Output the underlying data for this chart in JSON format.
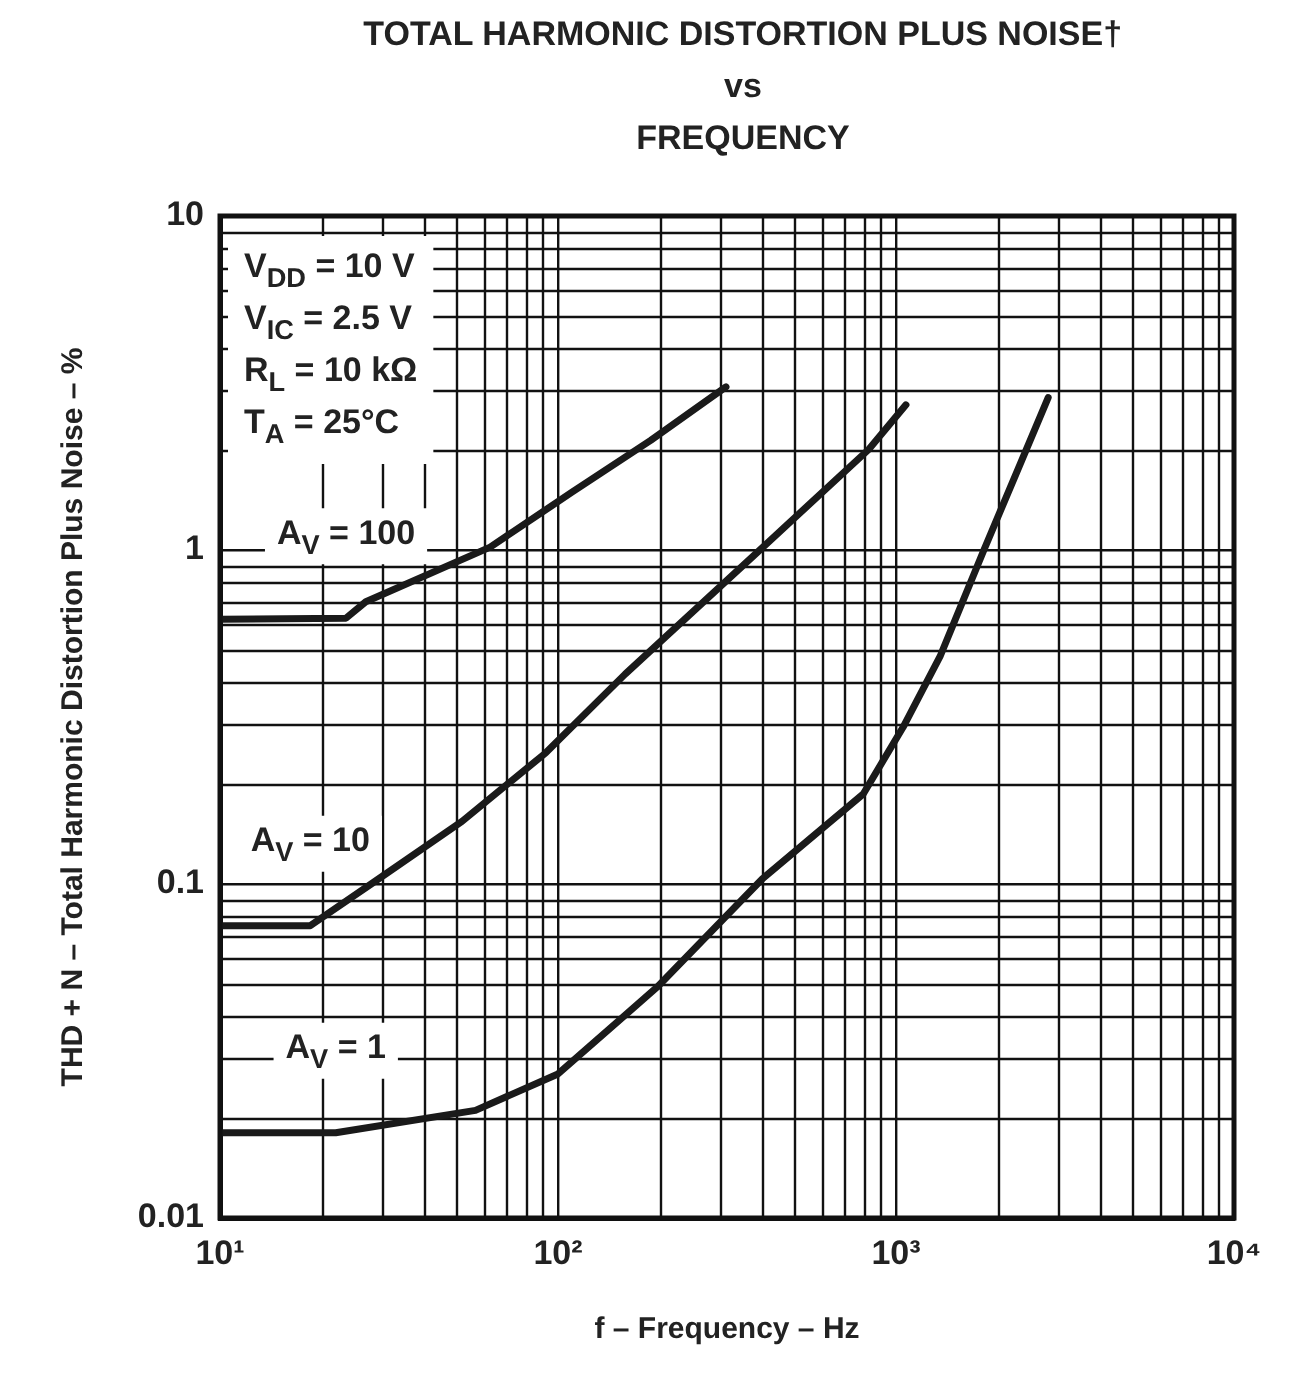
{
  "chart_data": {
    "type": "line",
    "title": "TOTAL HARMONIC DISTORTION PLUS NOISE†\nvs\nFREQUENCY",
    "xlabel": "f – Frequency – Hz",
    "ylabel": "THD + N – Total Harmonic Distortion Plus Noise – %",
    "log": "xy",
    "grid": true,
    "legend": false,
    "marker": "none",
    "line_style": "solid",
    "xlim": [
      10,
      10000
    ],
    "xticks": [
      {
        "value": 10,
        "label": "10¹"
      },
      {
        "value": 100,
        "label": "10²"
      },
      {
        "value": 1000,
        "label": "10³"
      },
      {
        "value": 10000,
        "label": "10⁴"
      }
    ],
    "ylim": [
      0.01,
      10
    ],
    "yticks": [
      0.01,
      0.1,
      1,
      10
    ],
    "annotations": [
      "V$_{DD}$ = 10 V",
      "V$_{IC}$ = 2.5 V",
      "R$_{L}$ = 10 kΩ",
      "T$_{A}$ = 25°C"
    ],
    "series": [
      {
        "name": "A$_{V}$ = 100",
        "color": "#1a1a1a",
        "x": [
          10,
          23.6,
          27,
          63,
          110,
          188,
          314
        ],
        "values": [
          0.62,
          0.625,
          0.7,
          1.02,
          1.49,
          2.13,
          3.08
        ]
      },
      {
        "name": "A$_{V}$ = 10",
        "color": "#1a1a1a",
        "x": [
          10,
          18.5,
          28,
          52,
          92,
          158,
          404,
          830,
          1070
        ],
        "values": [
          0.075,
          0.075,
          0.1,
          0.154,
          0.247,
          0.425,
          1.02,
          2.0,
          2.72
        ]
      },
      {
        "name": "A$_{V}$ = 1",
        "color": "#1a1a1a",
        "x": [
          10,
          22,
          57,
          100,
          196,
          404,
          800,
          1050,
          1350,
          1820,
          2820
        ],
        "values": [
          0.018,
          0.018,
          0.021,
          0.027,
          0.049,
          0.104,
          0.186,
          0.295,
          0.48,
          1.0,
          2.86
        ]
      }
    ]
  }
}
